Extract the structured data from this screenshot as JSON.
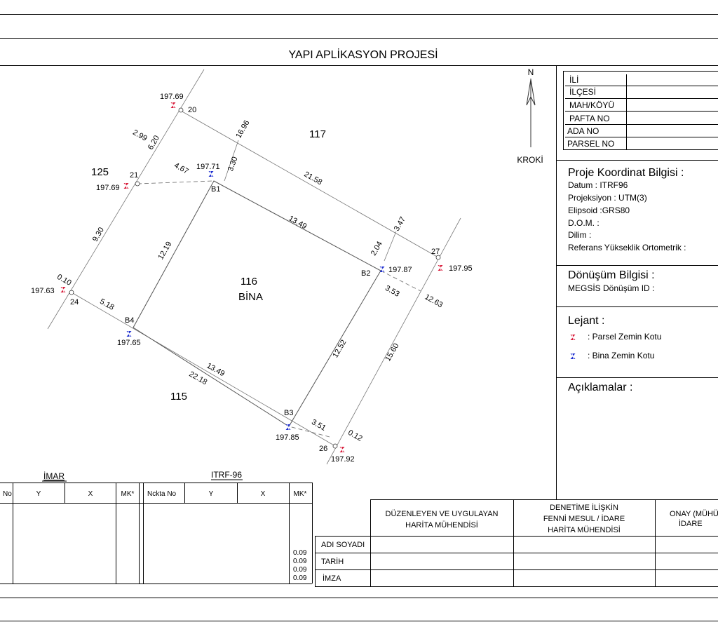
{
  "title": "YAPI APLİKASYON PROJESİ",
  "north_label": "N",
  "kroki_label": "KROKİ",
  "info_rows": [
    "İLİ",
    "İLÇESİ",
    "MAH/KÖYÜ",
    "PAFTA NO",
    "ADA  NO",
    "PARSEL NO"
  ],
  "coord": {
    "heading": "Proje Koordinat Bilgisi :",
    "lines": [
      "Datum : ITRF96",
      "Projeksiyon : UTM(3)",
      "Elipsoid :GRS80",
      "D.O.M. :",
      "Dilim :",
      "Referans Yükseklik Ortometrik :"
    ]
  },
  "transform": {
    "heading": "Dönüşüm Bilgisi :",
    "line": "MEGSİS Dönüşüm ID :"
  },
  "legend": {
    "heading": "Lejant :",
    "parcel": ": Parsel Zemin Kotu",
    "building": ": Bina Zemin Kotu"
  },
  "notes_heading": "Açıklamalar :",
  "parcels": {
    "p117": "117",
    "p125": "125",
    "p116": "116",
    "bina": "BİNA",
    "p115": "115"
  },
  "points": [
    {
      "no": "20",
      "elev": "197.69"
    },
    {
      "no": "21",
      "elev": "197.69"
    },
    {
      "no": "24",
      "elev": "197.63"
    },
    {
      "no": "26",
      "elev": "197.92"
    },
    {
      "no": "27",
      "elev": "197.95"
    }
  ],
  "building_points": [
    {
      "no": "B1",
      "elev": "197.71"
    },
    {
      "no": "B2",
      "elev": "197.87"
    },
    {
      "no": "B3",
      "elev": "197.85"
    },
    {
      "no": "B4",
      "elev": "197.65"
    }
  ],
  "dims": {
    "d1696": "16.96",
    "d330": "3.30",
    "d2158": "21.58",
    "d347": "3.47",
    "d299": "2.99",
    "d620": "6.20",
    "d467": "4.67",
    "d930": "9.30",
    "d010": "0.10",
    "d1349a": "13.49",
    "d1219": "12.19",
    "d204": "2.04",
    "d353": "3.53",
    "d1263": "12.63",
    "d518": "5.18",
    "d1349b": "13.49",
    "d2218": "22.18",
    "d1252": "12.52",
    "d1560": "15.60",
    "d351": "3.51",
    "d012": "0.12"
  },
  "imar": {
    "title": "İMAR",
    "headers": [
      "No",
      "Y",
      "X",
      "MK*"
    ]
  },
  "itrf": {
    "title": "ITRF-96",
    "headers": [
      "Nckta  No",
      "Y",
      "X",
      "MK*"
    ],
    "mk_values": [
      "0.09",
      "0.09",
      "0.09",
      "0.09"
    ]
  },
  "sign": {
    "columns": [
      [
        "DÜZENLEYEN VE UYGULAYAN",
        "HARİTA MÜHENDİSİ"
      ],
      [
        "DENETİME İLİŞKİN",
        "FENNİ MESUL / İDARE",
        "HARİTA MÜHENDİSİ"
      ],
      [
        "ONAY (MÜHÜ",
        "İDARE"
      ]
    ],
    "rows": [
      "ADI SOYADI",
      "TARİH",
      "İMZA"
    ]
  },
  "colors": {
    "parcel_marker": "#d81b3a",
    "building_marker": "#1e2fd0",
    "line": "#555555"
  }
}
